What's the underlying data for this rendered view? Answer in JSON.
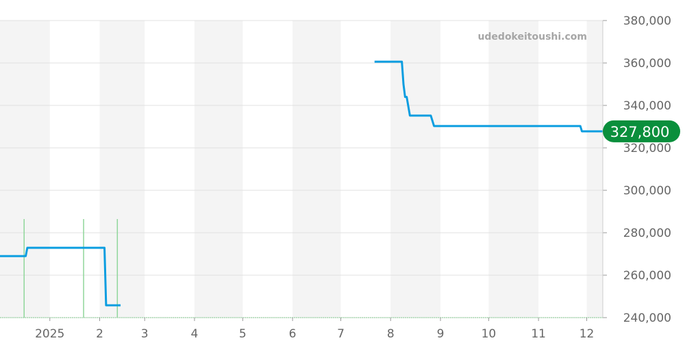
{
  "chart_data": {
    "type": "line",
    "watermark": "udedokeitoushi.com",
    "xlim": [
      "2024-12-01",
      "2025-12-11"
    ],
    "ylim": [
      240000,
      380000
    ],
    "grid": true,
    "x_ticks": [
      {
        "date": "2025-01-01",
        "label": "2025"
      },
      {
        "date": "2025-02-01",
        "label": "2"
      },
      {
        "date": "2025-03-01",
        "label": "3"
      },
      {
        "date": "2025-04-01",
        "label": "4"
      },
      {
        "date": "2025-05-01",
        "label": "5"
      },
      {
        "date": "2025-06-01",
        "label": "6"
      },
      {
        "date": "2025-07-01",
        "label": "7"
      },
      {
        "date": "2025-08-01",
        "label": "8"
      },
      {
        "date": "2025-09-01",
        "label": "9"
      },
      {
        "date": "2025-10-01",
        "label": "10"
      },
      {
        "date": "2025-11-01",
        "label": "11"
      },
      {
        "date": "2025-12-01",
        "label": "12"
      }
    ],
    "y_ticks": [
      {
        "value": 240000,
        "label": "240,000"
      },
      {
        "value": 260000,
        "label": "260,000"
      },
      {
        "value": 280000,
        "label": "280,000"
      },
      {
        "value": 300000,
        "label": "300,000"
      },
      {
        "value": 320000,
        "label": "320,000"
      },
      {
        "value": 340000,
        "label": "340,000"
      },
      {
        "value": 360000,
        "label": "360,000"
      },
      {
        "value": 380000,
        "label": "380,000"
      }
    ],
    "series": [
      {
        "color": "#0a9de0",
        "segments": [
          [
            [
              "2024-12-01",
              269000
            ],
            [
              "2024-12-17",
              269000
            ],
            [
              "2024-12-18",
              272900
            ],
            [
              "2025-02-04",
              272900
            ],
            [
              "2025-02-05",
              245800
            ],
            [
              "2025-02-14",
              245800
            ]
          ],
          [
            [
              "2025-07-22",
              360600
            ],
            [
              "2025-08-08",
              360600
            ],
            [
              "2025-08-09",
              350000
            ],
            [
              "2025-08-10",
              344000
            ],
            [
              "2025-08-11",
              344000
            ],
            [
              "2025-08-13",
              335200
            ],
            [
              "2025-08-26",
              335200
            ],
            [
              "2025-08-28",
              330300
            ],
            [
              "2025-11-27",
              330300
            ],
            [
              "2025-11-28",
              327800
            ],
            [
              "2025-12-11",
              327800
            ]
          ]
        ]
      }
    ],
    "event_markers": [
      "2024-12-16",
      "2025-01-22",
      "2025-02-12"
    ],
    "event_color": "#8fd69a",
    "current_value": {
      "value": 327800,
      "label": "327,800",
      "color": "#0a8f3c"
    }
  }
}
